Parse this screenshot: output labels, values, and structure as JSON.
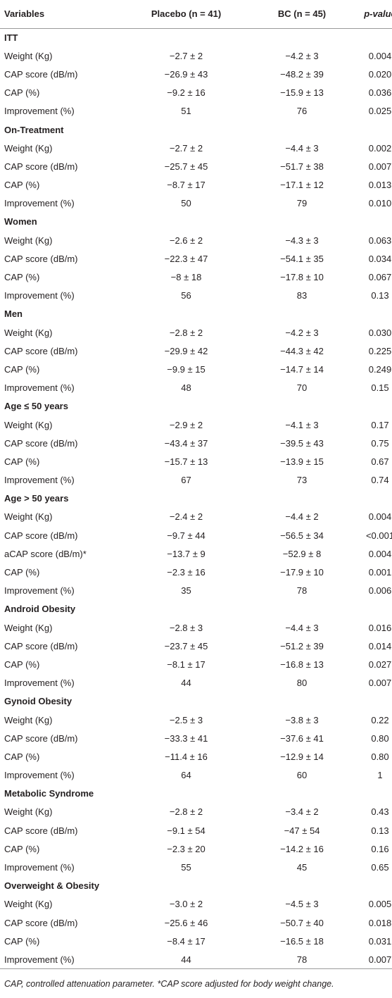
{
  "header": [
    "Variables",
    "Placebo (n = 41)",
    "BC (n = 45)",
    "p-value"
  ],
  "groups": [
    {
      "title": "ITT",
      "rows": [
        [
          "Weight (Kg)",
          "−2.7 ± 2",
          "−4.2 ± 3",
          "0.004"
        ],
        [
          "CAP score (dB/m)",
          "−26.9 ± 43",
          "−48.2 ± 39",
          "0.020"
        ],
        [
          "CAP (%)",
          "−9.2 ± 16",
          "−15.9 ± 13",
          "0.036"
        ],
        [
          "Improvement (%)",
          "51",
          "76",
          "0.025"
        ]
      ]
    },
    {
      "title": "On-Treatment",
      "rows": [
        [
          "Weight (Kg)",
          "−2.7 ± 2",
          "−4.4 ± 3",
          "0.002"
        ],
        [
          "CAP score (dB/m)",
          "−25.7 ± 45",
          "−51.7 ± 38",
          "0.007"
        ],
        [
          "CAP (%)",
          "−8.7 ± 17",
          "−17.1 ± 12",
          "0.013"
        ],
        [
          "Improvement (%)",
          "50",
          "79",
          "0.010"
        ]
      ]
    },
    {
      "title": "Women",
      "rows": [
        [
          "Weight (Kg)",
          "−2.6 ± 2",
          "−4.3 ± 3",
          "0.063"
        ],
        [
          "CAP score (dB/m)",
          "−22.3 ± 47",
          "−54.1 ± 35",
          "0.034"
        ],
        [
          "CAP (%)",
          "−8 ± 18",
          "−17.8 ± 10",
          "0.067"
        ],
        [
          "Improvement (%)",
          "56",
          "83",
          "0.13"
        ]
      ]
    },
    {
      "title": "Men",
      "rows": [
        [
          "Weight (Kg)",
          "−2.8 ± 2",
          "−4.2 ± 3",
          "0.030"
        ],
        [
          "CAP score (dB/m)",
          "−29.9 ± 42",
          "−44.3 ± 42",
          "0.225"
        ],
        [
          "CAP (%)",
          "−9.9 ± 15",
          "−14.7 ± 14",
          "0.249"
        ],
        [
          "Improvement (%)",
          "48",
          "70",
          "0.15"
        ]
      ]
    },
    {
      "title": "Age ≤ 50 years",
      "rows": [
        [
          "Weight (Kg)",
          "−2.9 ± 2",
          "−4.1 ± 3",
          "0.17"
        ],
        [
          "CAP score (dB/m)",
          "−43.4 ± 37",
          "−39.5 ± 43",
          "0.75"
        ],
        [
          "CAP (%)",
          "−15.7 ± 13",
          "−13.9 ± 15",
          "0.67"
        ],
        [
          "Improvement (%)",
          "67",
          "73",
          "0.74"
        ]
      ]
    },
    {
      "title": "Age > 50 years",
      "rows": [
        [
          "Weight (Kg)",
          "−2.4 ± 2",
          "−4.4 ± 2",
          "0.004"
        ],
        [
          "CAP score (dB/m)",
          "−9.7 ± 44",
          "−56.5 ± 34",
          "<0.001"
        ],
        [
          "aCAP score (dB/m)*",
          "−13.7 ± 9",
          "−52.9 ± 8",
          "0.004"
        ],
        [
          "CAP (%)",
          "−2.3 ± 16",
          "−17.9 ± 10",
          "0.001"
        ],
        [
          "Improvement (%)",
          "35",
          "78",
          "0.006"
        ]
      ]
    },
    {
      "title": "Android Obesity",
      "rows": [
        [
          "Weight (Kg)",
          "−2.8 ± 3",
          "−4.4 ± 3",
          "0.016"
        ],
        [
          "CAP score (dB/m)",
          "−23.7 ± 45",
          "−51.2 ± 39",
          "0.014"
        ],
        [
          "CAP (%)",
          "−8.1 ± 17",
          "−16.8 ± 13",
          "0.027"
        ],
        [
          "Improvement (%)",
          "44",
          "80",
          "0.007"
        ]
      ]
    },
    {
      "title": "Gynoid Obesity",
      "rows": [
        [
          "Weight (Kg)",
          "−2.5 ± 3",
          "−3.8 ± 3",
          "0.22"
        ],
        [
          "CAP score (dB/m)",
          "−33.3 ± 41",
          "−37.6 ± 41",
          "0.80"
        ],
        [
          "CAP (%)",
          "−11.4 ± 16",
          "−12.9 ± 14",
          "0.80"
        ],
        [
          "Improvement (%)",
          "64",
          "60",
          "1"
        ]
      ]
    },
    {
      "title": "Metabolic Syndrome",
      "rows": [
        [
          "Weight (Kg)",
          "−2.8 ± 2",
          "−3.4 ± 2",
          "0.43"
        ],
        [
          "CAP score (dB/m)",
          "−9.1 ± 54",
          "−47 ± 54",
          "0.13"
        ],
        [
          "CAP (%)",
          "−2.3 ± 20",
          "−14.2 ± 16",
          "0.16"
        ],
        [
          "Improvement (%)",
          "55",
          "45",
          "0.65"
        ]
      ]
    },
    {
      "title": "Overweight & Obesity",
      "rows": [
        [
          "Weight (Kg)",
          "−3.0 ± 2",
          "−4.5 ± 3",
          "0.005"
        ],
        [
          "CAP score (dB/m)",
          "−25.6 ± 46",
          "−50.7 ± 40",
          "0.018"
        ],
        [
          "CAP (%)",
          "−8.4 ± 17",
          "−16.5 ± 18",
          "0.031"
        ],
        [
          "Improvement (%)",
          "44",
          "78",
          "0.007"
        ]
      ]
    }
  ],
  "footnote": "CAP, controlled attenuation parameter. *CAP score adjusted for body weight change."
}
